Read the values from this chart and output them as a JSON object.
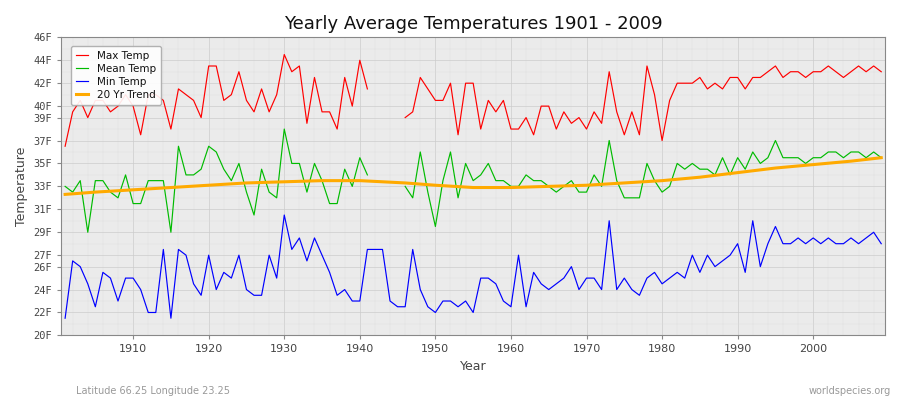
{
  "title": "Yearly Average Temperatures 1901 - 2009",
  "xlabel": "Year",
  "ylabel": "Temperature",
  "subtitle_left": "Latitude 66.25 Longitude 23.25",
  "subtitle_right": "worldspecies.org",
  "start_year": 1901,
  "end_year": 2009,
  "ylim": [
    20,
    46
  ],
  "yticks": [
    20,
    22,
    24,
    26,
    27,
    29,
    31,
    33,
    35,
    37,
    39,
    40,
    42,
    44,
    46
  ],
  "ytick_labels": [
    "20F",
    "22F",
    "24F",
    "26F",
    "27F",
    "29F",
    "31F",
    "33F",
    "35F",
    "37F",
    "39F",
    "40F",
    "42F",
    "44F",
    "46F"
  ],
  "color_max": "#ff0000",
  "color_mean": "#00bb00",
  "color_min": "#0000ff",
  "color_trend": "#ffaa00",
  "bg_color": "#ffffff",
  "plot_bg": "#ebebeb",
  "legend_labels": [
    "Max Temp",
    "Mean Temp",
    "Min Temp",
    "20 Yr Trend"
  ],
  "max_temps": [
    36.5,
    39.5,
    40.5,
    39.0,
    40.5,
    40.5,
    39.5,
    40.0,
    41.0,
    40.0,
    37.5,
    41.0,
    41.0,
    40.5,
    38.0,
    41.5,
    41.0,
    40.5,
    39.0,
    43.5,
    43.5,
    40.5,
    41.0,
    43.0,
    40.5,
    39.5,
    41.5,
    39.5,
    41.0,
    44.5,
    43.0,
    43.5,
    38.5,
    42.5,
    39.5,
    39.5,
    38.0,
    42.5,
    40.0,
    44.0,
    41.5,
    null,
    null,
    null,
    null,
    39.0,
    39.5,
    42.5,
    41.5,
    40.5,
    40.5,
    42.0,
    37.5,
    42.0,
    42.0,
    38.0,
    40.5,
    39.5,
    40.5,
    38.0,
    38.0,
    39.0,
    37.5,
    40.0,
    40.0,
    38.0,
    39.5,
    38.5,
    39.0,
    38.0,
    39.5,
    38.5,
    43.0,
    39.5,
    37.5,
    39.5,
    37.5,
    43.5,
    41.0,
    37.0,
    40.5,
    42.0,
    42.0,
    42.0,
    42.5,
    41.5,
    42.0,
    41.5,
    42.5,
    42.5,
    41.5,
    42.5,
    42.5,
    43.0,
    43.5,
    42.5,
    43.0,
    43.0,
    42.5,
    43.0,
    43.0,
    43.5,
    43.0,
    42.5,
    43.0,
    43.5,
    43.0,
    43.5,
    43.0
  ],
  "mean_temps": [
    33.0,
    32.5,
    33.5,
    29.0,
    33.5,
    33.5,
    32.5,
    32.0,
    34.0,
    31.5,
    31.5,
    33.5,
    33.5,
    33.5,
    29.0,
    36.5,
    34.0,
    34.0,
    34.5,
    36.5,
    36.0,
    34.5,
    33.5,
    35.0,
    32.5,
    30.5,
    34.5,
    32.5,
    32.0,
    38.0,
    35.0,
    35.0,
    32.5,
    35.0,
    33.5,
    31.5,
    31.5,
    34.5,
    33.0,
    35.5,
    34.0,
    null,
    null,
    null,
    null,
    33.0,
    32.0,
    36.0,
    32.5,
    29.5,
    33.5,
    36.0,
    32.0,
    35.0,
    33.5,
    34.0,
    35.0,
    33.5,
    33.5,
    33.0,
    33.0,
    34.0,
    33.5,
    33.5,
    33.0,
    32.5,
    33.0,
    33.5,
    32.5,
    32.5,
    34.0,
    33.0,
    37.0,
    33.5,
    32.0,
    32.0,
    32.0,
    35.0,
    33.5,
    32.5,
    33.0,
    35.0,
    34.5,
    35.0,
    34.5,
    34.5,
    34.0,
    35.5,
    34.0,
    35.5,
    34.5,
    36.0,
    35.0,
    35.5,
    37.0,
    35.5,
    35.5,
    35.5,
    35.0,
    35.5,
    35.5,
    36.0,
    36.0,
    35.5,
    36.0,
    36.0,
    35.5,
    36.0,
    35.5
  ],
  "min_temps": [
    21.5,
    26.5,
    26.0,
    24.5,
    22.5,
    25.5,
    25.0,
    23.0,
    25.0,
    25.0,
    24.0,
    22.0,
    22.0,
    27.5,
    21.5,
    27.5,
    27.0,
    24.5,
    23.5,
    27.0,
    24.0,
    25.5,
    25.0,
    27.0,
    24.0,
    23.5,
    23.5,
    27.0,
    25.0,
    30.5,
    27.5,
    28.5,
    26.5,
    28.5,
    27.0,
    25.5,
    23.5,
    24.0,
    23.0,
    23.0,
    27.5,
    27.5,
    27.5,
    23.0,
    22.5,
    22.5,
    27.5,
    24.0,
    22.5,
    22.0,
    23.0,
    23.0,
    22.5,
    23.0,
    22.0,
    25.0,
    25.0,
    24.5,
    23.0,
    22.5,
    27.0,
    22.5,
    25.5,
    24.5,
    24.0,
    24.5,
    25.0,
    26.0,
    24.0,
    25.0,
    25.0,
    24.0,
    30.0,
    24.0,
    25.0,
    24.0,
    23.5,
    25.0,
    25.5,
    24.5,
    25.0,
    25.5,
    25.0,
    27.0,
    25.5,
    27.0,
    26.0,
    26.5,
    27.0,
    28.0,
    25.5,
    30.0,
    26.0,
    28.0,
    29.5,
    28.0,
    28.0,
    28.5,
    28.0,
    28.5,
    28.0,
    28.5,
    28.0,
    28.0,
    28.5,
    28.0,
    28.5,
    29.0,
    28.0
  ],
  "trend_years": [
    1901,
    1905,
    1910,
    1915,
    1920,
    1925,
    1930,
    1935,
    1940,
    1946,
    1950,
    1955,
    1960,
    1965,
    1970,
    1975,
    1980,
    1985,
    1990,
    1995,
    2000,
    2005,
    2009
  ],
  "trend_temps": [
    32.3,
    32.5,
    32.7,
    32.9,
    33.1,
    33.3,
    33.4,
    33.5,
    33.5,
    33.3,
    33.1,
    32.9,
    32.9,
    33.0,
    33.1,
    33.3,
    33.5,
    33.8,
    34.2,
    34.6,
    34.9,
    35.2,
    35.5
  ]
}
